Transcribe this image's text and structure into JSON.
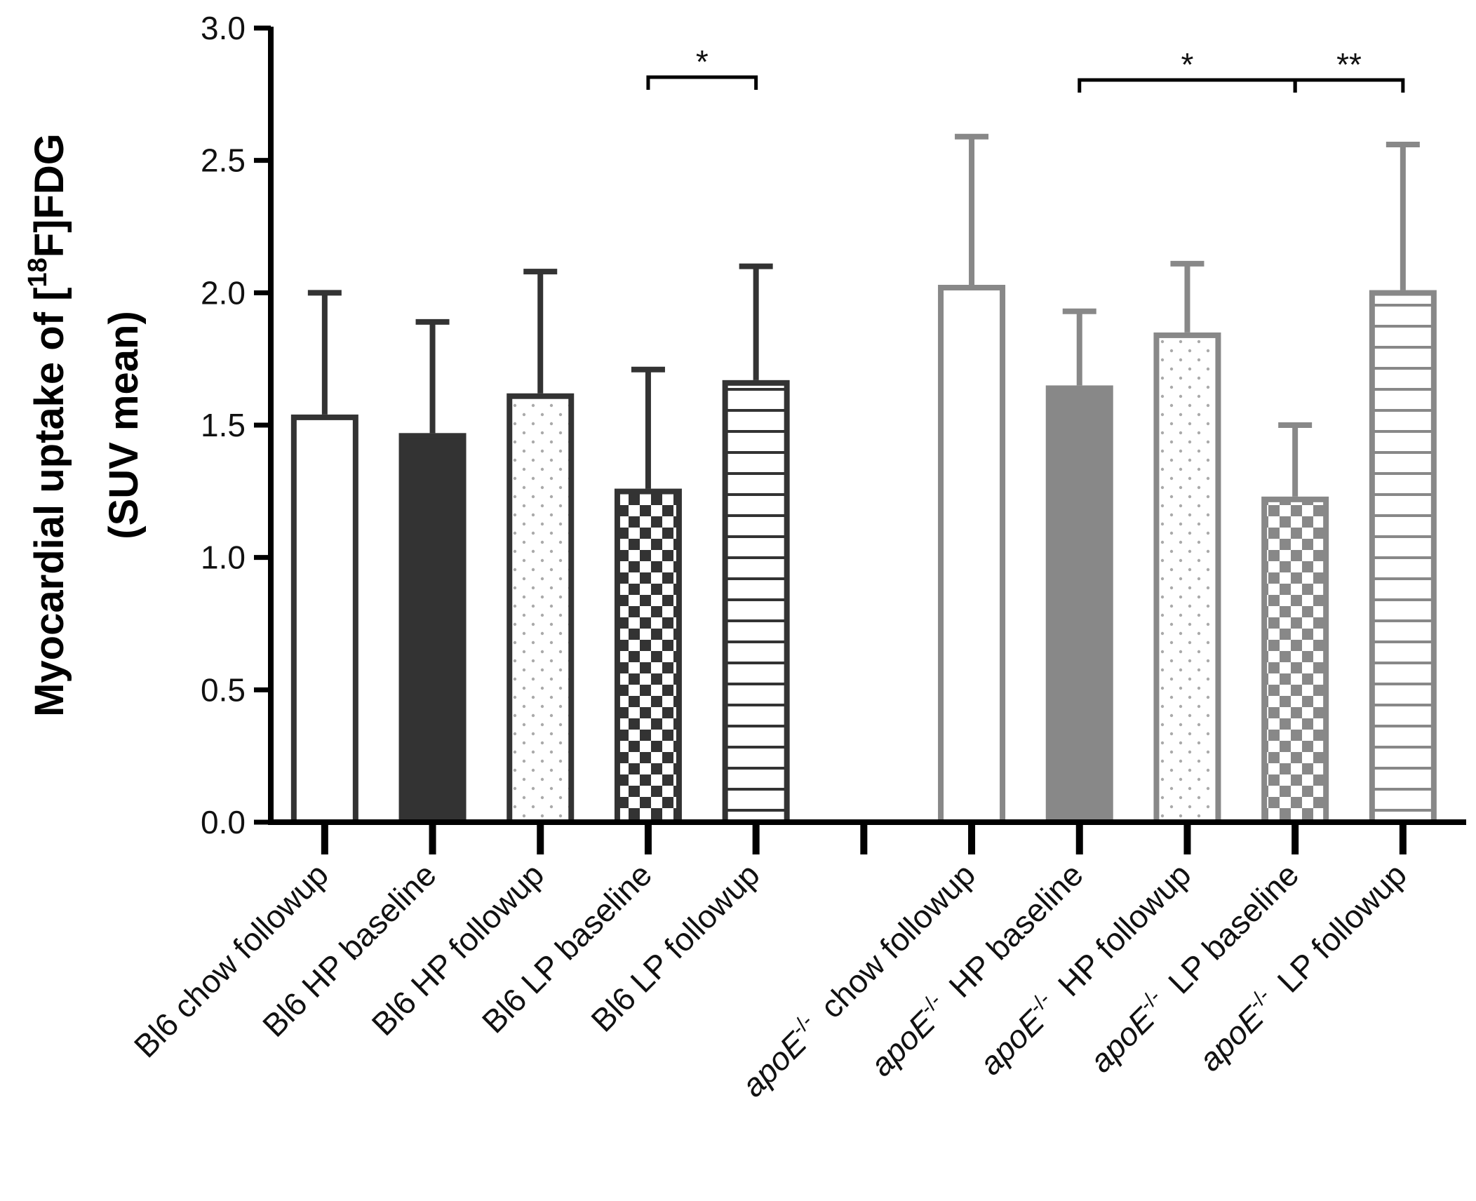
{
  "chart_data": {
    "type": "bar",
    "ylabel_line1": "Myocardial uptake of [",
    "ylabel_sup": "18",
    "ylabel_line1_end": "F]FDG",
    "ylabel_line2": "(SUV mean)",
    "ylim": [
      0,
      3.0
    ],
    "yticks": [
      "0.0",
      "0.5",
      "1.0",
      "1.5",
      "2.0",
      "2.5",
      "3.0"
    ],
    "ytick_values": [
      0,
      0.5,
      1.0,
      1.5,
      2.0,
      2.5,
      3.0
    ],
    "grid": false,
    "groups": [
      {
        "color": "#333333",
        "bars": [
          {
            "label": "Bl6 chow followup",
            "value": 1.54,
            "error": 0.46,
            "pattern": "empty"
          },
          {
            "label": "Bl6 HP baseline",
            "value": 1.47,
            "error": 0.42,
            "pattern": "solid"
          },
          {
            "label": "Bl6 HP followup",
            "value": 1.62,
            "error": 0.46,
            "pattern": "dots"
          },
          {
            "label": "Bl6 LP baseline",
            "value": 1.26,
            "error": 0.45,
            "pattern": "checker"
          },
          {
            "label": "Bl6 LP followup",
            "value": 1.67,
            "error": 0.43,
            "pattern": "hlines"
          }
        ]
      },
      {
        "color": "#888888",
        "bars": [
          {
            "prefix": "apoE",
            "sup": "-/-",
            "label": "chow followup",
            "value": 2.03,
            "error": 0.56,
            "pattern": "empty"
          },
          {
            "prefix": "apoE",
            "sup": "-/-",
            "label": "HP baseline",
            "value": 1.65,
            "error": 0.28,
            "pattern": "solid"
          },
          {
            "prefix": "apoE",
            "sup": "-/-",
            "label": "HP followup",
            "value": 1.85,
            "error": 0.26,
            "pattern": "dots"
          },
          {
            "prefix": "apoE",
            "sup": "-/-",
            "label": "LP baseline",
            "value": 1.23,
            "error": 0.27,
            "pattern": "checker"
          },
          {
            "prefix": "apoE",
            "sup": "-/-",
            "label": "LP followup",
            "value": 2.01,
            "error": 0.55,
            "pattern": "hlines"
          }
        ]
      }
    ],
    "significance": [
      {
        "from": [
          0,
          3
        ],
        "to": [
          0,
          4
        ],
        "label": "*"
      },
      {
        "from": [
          1,
          1
        ],
        "to": [
          1,
          3
        ],
        "label": "*"
      },
      {
        "from": [
          1,
          3
        ],
        "to": [
          1,
          4
        ],
        "label": "**"
      }
    ]
  }
}
